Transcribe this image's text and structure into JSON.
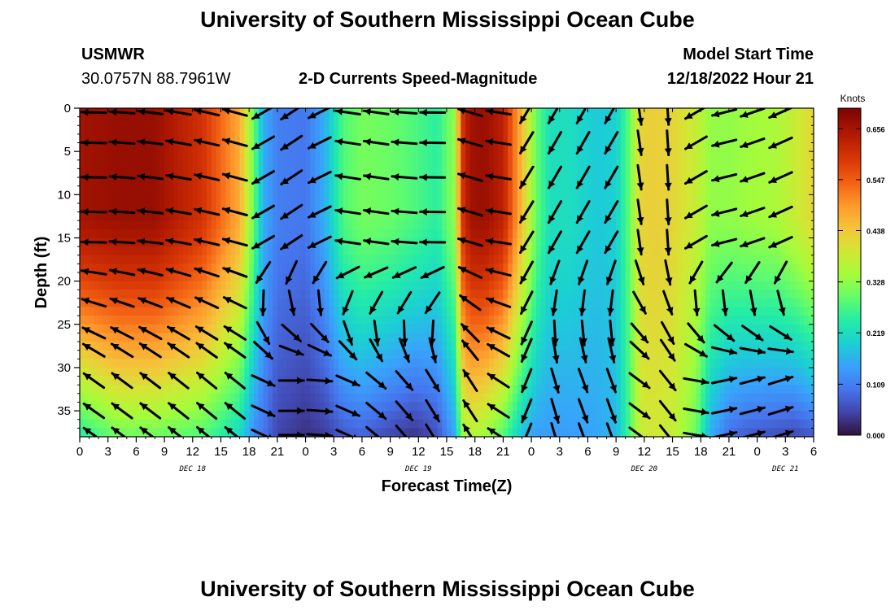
{
  "page": {
    "title": "University of Southern Mississippi Ocean Cube",
    "footer_title": "University of Southern Mississippi Ocean Cube",
    "station_id": "USMWR",
    "station_coords": "30.0757N  88.7961W",
    "plot_subtitle": "2-D Currents Speed-Magnitude",
    "model_start_label": "Model Start Time",
    "model_start_value": "12/18/2022 Hour 21"
  },
  "chart_data": {
    "type": "heatmap",
    "title": "2-D Currents Speed-Magnitude",
    "xlabel": "Forecast Time(Z)",
    "ylabel": "Depth (ft)",
    "colorbar_label": "Knots",
    "colorbar_ticks": [
      "0.656",
      "0.547",
      "0.438",
      "0.328",
      "0.219",
      "0.109",
      "0.000"
    ],
    "colorbar_range": [
      0.0,
      0.7
    ],
    "x_tick_labels": [
      "0",
      "3",
      "6",
      "9",
      "12",
      "15",
      "18",
      "21",
      "0",
      "3",
      "6",
      "9",
      "12",
      "15",
      "18",
      "21",
      "0",
      "3",
      "6",
      "9",
      "12",
      "15",
      "18",
      "21",
      "0",
      "3",
      "6"
    ],
    "x_range_hours": [
      0,
      78
    ],
    "day_labels": [
      {
        "text": "DEC 18",
        "hour": 12
      },
      {
        "text": "DEC 19",
        "hour": 36
      },
      {
        "text": "DEC 20",
        "hour": 60
      },
      {
        "text": "DEC 21",
        "hour": 75
      }
    ],
    "y_tick_labels": [
      "0",
      "5",
      "10",
      "15",
      "20",
      "25",
      "30",
      "35"
    ],
    "y_range": [
      0,
      38
    ],
    "speed_profile": {
      "hours": [
        0,
        4,
        8,
        13,
        17,
        18.5,
        19.5,
        21,
        24,
        26,
        28,
        30,
        33,
        35.5,
        38,
        40,
        40.5,
        41.5,
        43,
        45,
        47,
        48.5,
        50,
        52,
        55,
        57,
        58.5,
        59.5,
        61,
        63,
        65.5,
        67,
        69,
        71,
        74,
        76,
        78
      ],
      "top_knots": [
        0.66,
        0.67,
        0.67,
        0.6,
        0.47,
        0.3,
        0.16,
        0.11,
        0.1,
        0.16,
        0.28,
        0.31,
        0.3,
        0.28,
        0.25,
        0.34,
        0.58,
        0.66,
        0.67,
        0.63,
        0.45,
        0.3,
        0.22,
        0.22,
        0.19,
        0.2,
        0.3,
        0.42,
        0.43,
        0.42,
        0.38,
        0.33,
        0.33,
        0.34,
        0.35,
        0.38,
        0.42
      ],
      "bottom_knots": [
        0.24,
        0.3,
        0.3,
        0.28,
        0.21,
        0.12,
        0.1,
        0.05,
        0.03,
        0.04,
        0.07,
        0.08,
        0.05,
        0.03,
        0.06,
        0.16,
        0.32,
        0.36,
        0.34,
        0.28,
        0.18,
        0.14,
        0.14,
        0.14,
        0.15,
        0.17,
        0.28,
        0.38,
        0.39,
        0.38,
        0.3,
        0.16,
        0.09,
        0.07,
        0.06,
        0.05,
        0.07
      ]
    },
    "direction_profile": {
      "hours": [
        0,
        16,
        18.5,
        19.5,
        22,
        24,
        26,
        28,
        30,
        38,
        40,
        40.5,
        44,
        48,
        50,
        52,
        57,
        58.5,
        60,
        62,
        64,
        66,
        78
      ],
      "top_bearing_deg": [
        270,
        285,
        285,
        240,
        240,
        225,
        250,
        278,
        280,
        270,
        270,
        285,
        290,
        200,
        210,
        210,
        210,
        175,
        170,
        175,
        180,
        260,
        240
      ],
      "bottom_bearing_deg": [
        305,
        310,
        305,
        115,
        90,
        90,
        95,
        110,
        125,
        150,
        190,
        330,
        320,
        185,
        165,
        160,
        160,
        120,
        130,
        135,
        160,
        80,
        70
      ]
    },
    "vector_columns_hours": [
      1.5,
      4.5,
      7.5,
      10.5,
      13.5,
      16.5,
      19.5,
      22.5,
      25.5,
      28.5,
      31.5,
      34.5,
      37.5,
      41.5,
      44.5,
      47.5,
      50.5,
      53.5,
      56.5,
      59.5,
      62.5,
      65.5,
      68.5,
      71.5,
      74.5
    ],
    "vector_rows_ft": [
      0.5,
      4,
      8,
      12,
      15.5,
      19,
      22.5,
      26,
      28,
      31.5,
      35,
      37.8
    ]
  }
}
